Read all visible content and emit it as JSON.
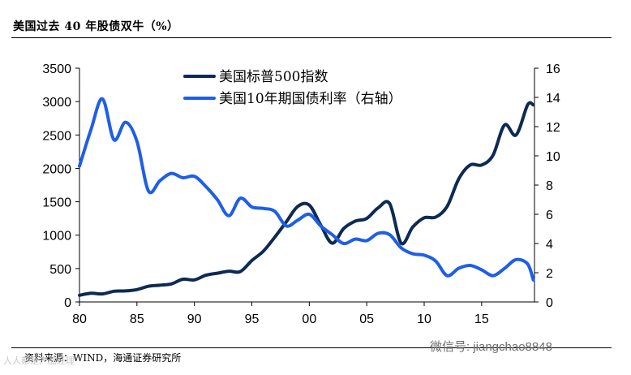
{
  "header": {
    "title": "美国过去 40 年股债双牛（%）",
    "source": "资料来源：WIND，海通证券研究所"
  },
  "watermarks": {
    "left": "人人都是产品经理",
    "right": "微信号: jiangchao8848"
  },
  "chart_data": {
    "type": "line",
    "xlabel": "",
    "x_ticks": [
      "80",
      "85",
      "90",
      "95",
      "00",
      "05",
      "10",
      "15"
    ],
    "xlim": [
      1980,
      2019.6
    ],
    "left_axis": {
      "ylim": [
        0,
        3500
      ],
      "ticks": [
        "0",
        "500",
        "1000",
        "1500",
        "2000",
        "2500",
        "3000",
        "3500"
      ]
    },
    "right_axis": {
      "ylim": [
        0,
        16
      ],
      "ticks": [
        "0",
        "2",
        "4",
        "6",
        "8",
        "10",
        "12",
        "14",
        "16"
      ]
    },
    "series": [
      {
        "name": "美国标普500指数",
        "axis": "left",
        "color": "#0d2a54",
        "x": [
          1980,
          1981,
          1982,
          1983,
          1984,
          1985,
          1986,
          1987,
          1988,
          1989,
          1990,
          1991,
          1992,
          1993,
          1994,
          1995,
          1996,
          1997,
          1998,
          1999,
          2000,
          2001,
          2002,
          2003,
          2004,
          2005,
          2006,
          2007,
          2008,
          2009,
          2010,
          2011,
          2012,
          2013,
          2014,
          2015,
          2016,
          2017,
          2018,
          2019,
          2019.5
        ],
        "values": [
          100,
          130,
          120,
          160,
          165,
          185,
          235,
          250,
          270,
          340,
          330,
          400,
          430,
          460,
          455,
          620,
          760,
          970,
          1200,
          1430,
          1450,
          1150,
          880,
          1100,
          1210,
          1250,
          1410,
          1470,
          880,
          1120,
          1260,
          1270,
          1430,
          1840,
          2050,
          2050,
          2200,
          2650,
          2500,
          2950,
          2950
        ]
      },
      {
        "name": "美国10年期国债利率（右轴）",
        "axis": "right",
        "color": "#1e5ee8",
        "x": [
          1980,
          1981,
          1982,
          1983,
          1984,
          1985,
          1986,
          1987,
          1988,
          1989,
          1990,
          1991,
          1992,
          1993,
          1994,
          1995,
          1996,
          1997,
          1998,
          1999,
          2000,
          2001,
          2002,
          2003,
          2004,
          2005,
          2006,
          2007,
          2008,
          2009,
          2010,
          2011,
          2012,
          2013,
          2014,
          2015,
          2016,
          2017,
          2018,
          2019,
          2019.5
        ],
        "values": [
          9.3,
          11.8,
          13.9,
          11.1,
          12.3,
          11.0,
          7.6,
          8.3,
          8.8,
          8.5,
          8.6,
          7.9,
          7.0,
          5.9,
          7.1,
          6.5,
          6.4,
          6.2,
          5.2,
          5.6,
          6.0,
          5.2,
          4.6,
          4.0,
          4.3,
          4.2,
          4.7,
          4.6,
          3.7,
          3.3,
          3.2,
          2.8,
          1.8,
          2.3,
          2.5,
          2.2,
          1.8,
          2.3,
          2.9,
          2.6,
          1.5
        ]
      }
    ],
    "legend_placement": "top-center",
    "grid": false
  }
}
